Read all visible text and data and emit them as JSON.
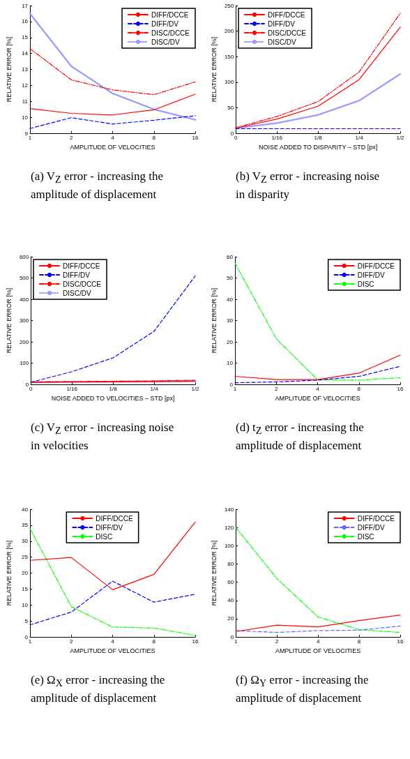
{
  "chart_data": [
    {
      "type": "line",
      "title": "(a) V$_{Z}$ error - increasing the amplitude of displacement",
      "xlabel": "AMPLITUDE OF VELOCITIES",
      "ylabel": "RELATIVE ERROR [%]",
      "categories": [
        "1",
        "2",
        "4",
        "8",
        "16"
      ],
      "ylim": [
        9,
        17
      ],
      "yticks": [
        9,
        10,
        11,
        12,
        13,
        14,
        15,
        16,
        17
      ],
      "legend": "top right",
      "grid": false,
      "marker": "none",
      "series": [
        {
          "name": "DIFF/DCCE",
          "color": "#ff0000",
          "line_style": "solid",
          "values": [
            10.55,
            10.25,
            10.15,
            10.47,
            11.45
          ]
        },
        {
          "name": "DIFF/DV",
          "color": "#0000ff",
          "line_style": "dashed",
          "values": [
            9.3,
            9.98,
            9.58,
            9.82,
            10.1
          ]
        },
        {
          "name": "DISC/DCCE",
          "color": "#ff0000",
          "line_style": "dashdot",
          "values": [
            14.3,
            12.35,
            11.72,
            11.42,
            12.22
          ]
        },
        {
          "name": "DISC/DV",
          "color": "#9999ff",
          "line_style": "dotted",
          "values": [
            16.5,
            13.2,
            11.5,
            10.5,
            9.85
          ]
        }
      ]
    },
    {
      "type": "line",
      "title": "(b) V$_{Z}$ error - increasing noise in disparity",
      "xlabel": "NOISE ADDED TO DISPARITY – STD [px]",
      "ylabel": "RELATIVE ERROR [%]",
      "categories": [
        "0",
        "1/16",
        "1/8",
        "1/4",
        "1/2"
      ],
      "ylim": [
        0,
        250
      ],
      "yticks": [
        0,
        50,
        100,
        150,
        200,
        250
      ],
      "legend": "top left",
      "grid": false,
      "marker": "none",
      "series": [
        {
          "name": "DIFF/DCCE",
          "color": "#ff0000",
          "line_style": "solid",
          "values": [
            10,
            28,
            53,
            105,
            208
          ]
        },
        {
          "name": "DIFF/DV",
          "color": "#0000ff",
          "line_style": "dashed",
          "values": [
            9,
            9,
            9,
            9,
            9
          ]
        },
        {
          "name": "DISC/DCCE",
          "color": "#ff0000",
          "line_style": "dashdot",
          "values": [
            11,
            33,
            62,
            120,
            235
          ]
        },
        {
          "name": "DISC/DV",
          "color": "#9999ff",
          "line_style": "dotted",
          "values": [
            10,
            20,
            36,
            64,
            116
          ]
        }
      ]
    },
    {
      "type": "line",
      "title": "(c) V$_{Z}$ error - increasing noise in velocities",
      "xlabel": "NOISE ADDED TO VELOCITIES – STD [px]",
      "ylabel": "RELATIVE ERROR [%]",
      "categories": [
        "0",
        "1/16",
        "1/8",
        "1/4",
        "1/2"
      ],
      "ylim": [
        0,
        600
      ],
      "yticks": [
        0,
        100,
        200,
        300,
        400,
        500,
        600
      ],
      "legend": "top left",
      "grid": false,
      "marker": "none",
      "series": [
        {
          "name": "DIFF/DCCE",
          "color": "#ff0000",
          "line_style": "solid",
          "values": [
            10,
            11,
            12,
            13,
            15
          ]
        },
        {
          "name": "DIFF/DV",
          "color": "#0000ff",
          "line_style": "dashed",
          "values": [
            10,
            60,
            125,
            250,
            510
          ]
        },
        {
          "name": "DISC/DCCE",
          "color": "#ff0000",
          "line_style": "dashdot",
          "values": [
            12,
            14,
            15,
            17,
            20
          ]
        },
        {
          "name": "DISC/DV",
          "color": "#9999ff",
          "line_style": "dotted",
          "values": [
            10,
            12,
            13,
            14,
            16
          ]
        }
      ]
    },
    {
      "type": "line",
      "title": "(d) t$_{Z}$ error - increasing the amplitude of displacement",
      "xlabel": "AMPLITUDE OF VELOCITIES",
      "ylabel": "RELATIVE ERROR [%]",
      "categories": [
        "1",
        "2",
        "4",
        "8",
        "16"
      ],
      "ylim": [
        0,
        60
      ],
      "yticks": [
        0,
        10,
        20,
        30,
        40,
        50,
        60
      ],
      "legend": "top right",
      "grid": false,
      "marker": "none",
      "series": [
        {
          "name": "DIFF/DCCE",
          "color": "#ff0000",
          "line_style": "solid",
          "values": [
            3.8,
            2.3,
            2.3,
            5.3,
            13.8
          ]
        },
        {
          "name": "DIFF/DV",
          "color": "#0000ff",
          "line_style": "dashed",
          "values": [
            0.8,
            1.2,
            2.0,
            3.8,
            8.5
          ]
        },
        {
          "name": "DISC",
          "color": "#00ff00",
          "line_style": "dashdot",
          "values": [
            57,
            21.5,
            2.2,
            2,
            3.2
          ]
        }
      ]
    },
    {
      "type": "line",
      "title": "(e) Ω$_{X}$ error - increasing the amplitude of displacement",
      "xlabel": "AMPLITUDE OF VELOCITIES",
      "ylabel": "RELATIVE ERROR [%]",
      "categories": [
        "1",
        "2",
        "4",
        "8",
        "16"
      ],
      "ylim": [
        0,
        40
      ],
      "yticks": [
        0,
        5,
        10,
        15,
        20,
        25,
        30,
        35,
        40
      ],
      "legend": "top",
      "grid": false,
      "marker": "none",
      "series": [
        {
          "name": "DIFF/DCCE",
          "color": "#ff0000",
          "line_style": "solid",
          "values": [
            24,
            24.9,
            14.8,
            19.6,
            36
          ]
        },
        {
          "name": "DIFF/DV",
          "color": "#0000ff",
          "line_style": "dashed",
          "values": [
            3.8,
            7.8,
            17.5,
            10.9,
            13.4
          ]
        },
        {
          "name": "DISC",
          "color": "#00ff00",
          "line_style": "dashdot",
          "values": [
            34,
            9.5,
            3.1,
            2.8,
            0.5
          ]
        }
      ]
    },
    {
      "type": "line",
      "title": "(f) Ω$_{Y}$ error - increasing the amplitude of displacement",
      "xlabel": "AMPLITUDE OF VELOCITIES",
      "ylabel": "RELATIVE ERROR [%]",
      "categories": [
        "1",
        "2",
        "4",
        "8",
        "16"
      ],
      "ylim": [
        0,
        140
      ],
      "yticks": [
        0,
        20,
        40,
        60,
        80,
        100,
        120,
        140
      ],
      "legend": "top right",
      "grid": false,
      "marker": "none",
      "series": [
        {
          "name": "DIFF/DCCE",
          "color": "#ff0000",
          "line_style": "solid",
          "values": [
            6,
            13,
            11,
            18,
            24
          ]
        },
        {
          "name": "DIFF/DV",
          "color": "#6666ff",
          "line_style": "dashed",
          "values": [
            7,
            5,
            7,
            7.5,
            12
          ]
        },
        {
          "name": "DISC",
          "color": "#00ff00",
          "line_style": "dashdot",
          "values": [
            120,
            64,
            22,
            8,
            5
          ]
        }
      ]
    }
  ]
}
